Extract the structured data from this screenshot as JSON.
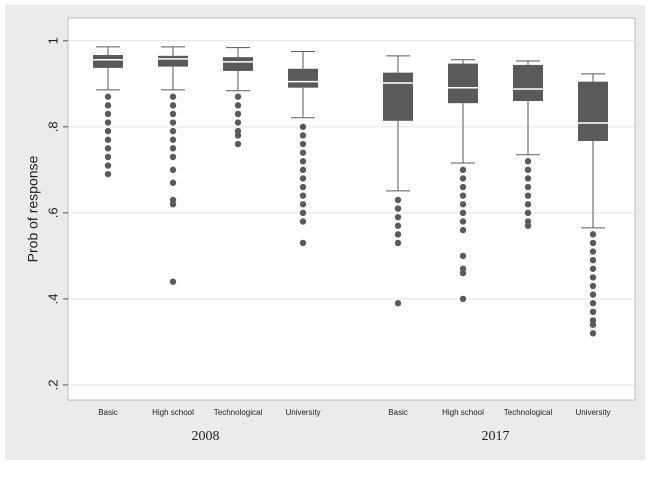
{
  "chart_data": {
    "type": "box",
    "y_label": "Prob of response",
    "categories": [
      "Basic",
      "High school",
      "Technological",
      "University",
      "Basic",
      "High school",
      "Technological",
      "University"
    ],
    "groups": [
      "2008",
      "2017"
    ],
    "whisker_low": [
      0.886,
      0.886,
      0.884,
      0.821,
      0.651,
      0.716,
      0.735,
      0.565
    ],
    "q1": [
      0.937,
      0.94,
      0.93,
      0.891,
      0.814,
      0.855,
      0.86,
      0.767
    ],
    "median": [
      0.956,
      0.958,
      0.951,
      0.905,
      0.902,
      0.891,
      0.888,
      0.809
    ],
    "q3": [
      0.967,
      0.965,
      0.962,
      0.935,
      0.926,
      0.947,
      0.944,
      0.905
    ],
    "whisker_high": [
      0.986,
      0.986,
      0.984,
      0.975,
      0.965,
      0.956,
      0.953,
      0.923
    ],
    "outliers": [
      [
        0.87,
        0.85,
        0.83,
        0.81,
        0.79,
        0.77,
        0.75,
        0.73,
        0.71,
        0.69
      ],
      [
        0.87,
        0.85,
        0.83,
        0.81,
        0.79,
        0.77,
        0.75,
        0.73,
        0.7,
        0.67,
        0.63,
        0.62,
        0.44
      ],
      [
        0.87,
        0.85,
        0.83,
        0.81,
        0.79,
        0.78,
        0.76
      ],
      [
        0.8,
        0.78,
        0.76,
        0.74,
        0.72,
        0.7,
        0.68,
        0.66,
        0.64,
        0.62,
        0.6,
        0.58,
        0.53
      ],
      [
        0.63,
        0.61,
        0.59,
        0.57,
        0.55,
        0.53,
        0.39
      ],
      [
        0.7,
        0.68,
        0.66,
        0.64,
        0.62,
        0.6,
        0.58,
        0.56,
        0.5,
        0.47,
        0.46,
        0.4
      ],
      [
        0.72,
        0.7,
        0.68,
        0.66,
        0.64,
        0.62,
        0.6,
        0.58,
        0.57
      ],
      [
        0.55,
        0.53,
        0.51,
        0.49,
        0.47,
        0.45,
        0.43,
        0.41,
        0.39,
        0.37,
        0.35,
        0.34,
        0.32
      ]
    ],
    "color": "#5a5a5a",
    "median_color": "#ffffff",
    "ylim": [
      0.165,
      1.053
    ],
    "yticks": [
      {
        "value": 0.2,
        "label": ".2"
      },
      {
        "value": 0.4,
        "label": ".4"
      },
      {
        "value": 0.6,
        "label": ".6"
      },
      {
        "value": 0.8,
        "label": ".8"
      },
      1
    ],
    "grid": true
  }
}
